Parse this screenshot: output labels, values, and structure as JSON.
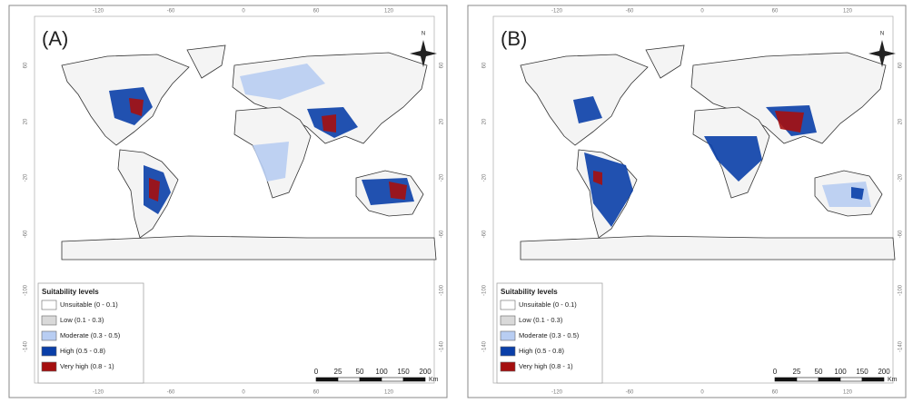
{
  "panels": [
    {
      "label": "(A)"
    },
    {
      "label": "(B)"
    }
  ],
  "compass": "N",
  "legend": {
    "title": "Suitability levels",
    "items": [
      {
        "label": "Unsuitable (0 - 0.1)",
        "color": "#ffffff"
      },
      {
        "label": "Low (0.1 - 0.3)",
        "color": "#d9d9d9"
      },
      {
        "label": "Moderate (0.3 - 0.5)",
        "color": "#b8cdf2"
      },
      {
        "label": "High (0.5 - 0.8)",
        "color": "#0a3fa8"
      },
      {
        "label": "Very high (0.8 - 1)",
        "color": "#a50f0f"
      }
    ]
  },
  "scale_bar": {
    "labels": [
      "0",
      "25",
      "50",
      "100",
      "150",
      "200"
    ],
    "unit": "Km"
  },
  "axes": {
    "longitude": [
      "-120",
      "-60",
      "0",
      "60",
      "120"
    ],
    "latitude": [
      "60",
      "20",
      "-20",
      "-60",
      "-100",
      "-140"
    ]
  }
}
